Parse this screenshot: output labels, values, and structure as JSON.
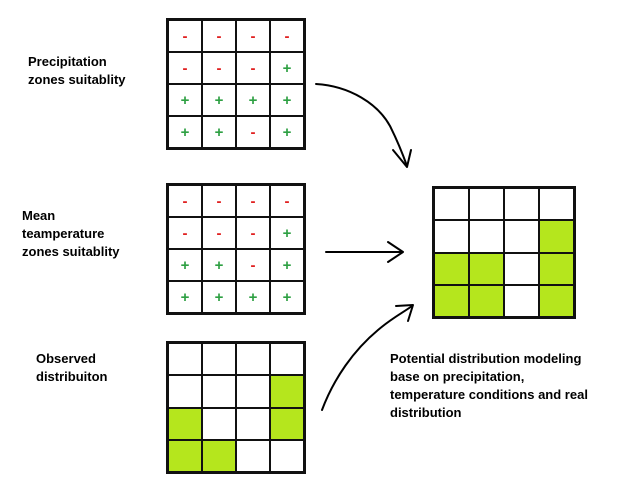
{
  "labels": {
    "precipitation": "Precipitation\nzones suitablity",
    "temperature": "Mean\nteamperature\nzones suitablity",
    "observed": "Observed\ndistribuiton",
    "result": "Potential distribution modeling\nbase on precipitation,\ntemperature conditions and real\ndistribution"
  },
  "grids": {
    "precipitation": [
      [
        "-",
        "-",
        "-",
        "-"
      ],
      [
        "-",
        "-",
        "-",
        "+"
      ],
      [
        "+",
        "+",
        "+",
        "+"
      ],
      [
        "+",
        "+",
        "-",
        "+"
      ]
    ],
    "temperature": [
      [
        "-",
        "-",
        "-",
        "-"
      ],
      [
        "-",
        "-",
        "-",
        "+"
      ],
      [
        "+",
        "+",
        "-",
        "+"
      ],
      [
        "+",
        "+",
        "+",
        "+"
      ]
    ],
    "observed": [
      [
        0,
        0,
        0,
        0
      ],
      [
        0,
        0,
        0,
        1
      ],
      [
        1,
        0,
        0,
        1
      ],
      [
        1,
        1,
        0,
        0
      ]
    ],
    "potential": [
      [
        0,
        0,
        0,
        0
      ],
      [
        0,
        0,
        0,
        1
      ],
      [
        1,
        1,
        0,
        1
      ],
      [
        1,
        1,
        0,
        1
      ]
    ]
  },
  "colors": {
    "plus": "#2ea043",
    "minus": "#e02020",
    "fill": "#b5e61d"
  }
}
